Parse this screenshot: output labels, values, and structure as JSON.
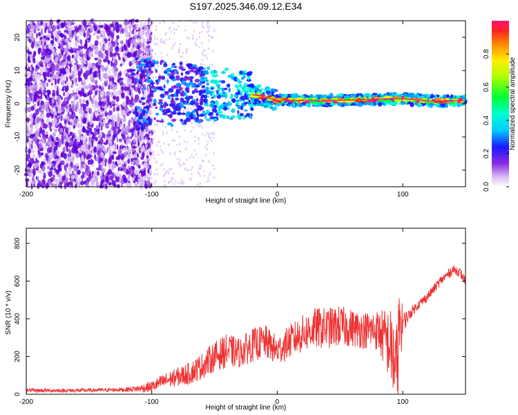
{
  "title": "S197.2025.346.09.12.E34",
  "chart_data": [
    {
      "type": "heatmap",
      "title": "S197.2025.346.09.12.E34",
      "xlabel": "Height of straight line (km)",
      "ylabel": "Frequency (Hz)",
      "xlim": [
        -200,
        150
      ],
      "ylim": [
        -25,
        25
      ],
      "x_ticks": [
        -200,
        -100,
        0,
        100
      ],
      "x_tick_labels": [
        "-200",
        "-100",
        "0",
        "100"
      ],
      "y_ticks": [
        20,
        10,
        0,
        -10,
        -20
      ],
      "y_tick_labels": [
        "20",
        "10",
        "0",
        "-10",
        "-20"
      ],
      "colorbar": {
        "label": "Normalized spectral amplitude",
        "range": [
          0,
          1
        ],
        "ticks": [
          0.0,
          0.2,
          0.4,
          0.6,
          0.8
        ],
        "tick_labels": [
          "0.0",
          "0.2",
          "0.4",
          "0.6",
          "0.8"
        ]
      },
      "description_points": {
        "ridge_frequency_hz": [
          [
            -30,
            3
          ],
          [
            -15,
            2.5
          ],
          [
            0,
            1
          ],
          [
            50,
            1
          ],
          [
            90,
            1.5
          ],
          [
            100,
            1.5
          ],
          [
            125,
            0.8
          ],
          [
            150,
            1
          ]
        ],
        "noise_region_km": [
          -200,
          -110
        ]
      }
    },
    {
      "type": "line",
      "xlabel": "Height of straight line (km)",
      "ylabel": "SNR (10 * v/v)",
      "xlim": [
        -200,
        150
      ],
      "ylim": [
        0,
        880
      ],
      "x_ticks": [
        -200,
        -100,
        0,
        100
      ],
      "x_tick_labels": [
        "-200",
        "-100",
        "0",
        "100"
      ],
      "y_ticks": [
        0,
        200,
        400,
        600,
        800
      ],
      "y_tick_labels": [
        "0",
        "200",
        "400",
        "600",
        "800"
      ],
      "color": "#ee3333",
      "series": [
        {
          "name": "SNR",
          "x": [
            -200,
            -180,
            -160,
            -140,
            -120,
            -110,
            -100,
            -90,
            -80,
            -70,
            -60,
            -50,
            -40,
            -30,
            -20,
            -10,
            0,
            10,
            20,
            30,
            40,
            50,
            60,
            70,
            80,
            90,
            95,
            98,
            100,
            105,
            110,
            120,
            130,
            140,
            145,
            150
          ],
          "values": [
            20,
            20,
            20,
            22,
            25,
            30,
            40,
            70,
            90,
            110,
            150,
            200,
            230,
            220,
            260,
            280,
            230,
            280,
            320,
            350,
            350,
            360,
            350,
            340,
            340,
            260,
            120,
            380,
            380,
            420,
            460,
            520,
            600,
            660,
            650,
            600
          ],
          "spread": [
            10,
            10,
            10,
            10,
            12,
            20,
            30,
            40,
            50,
            60,
            70,
            80,
            90,
            80,
            90,
            90,
            80,
            90,
            100,
            110,
            110,
            110,
            100,
            100,
            110,
            200,
            250,
            250,
            60,
            30,
            25,
            25,
            25,
            25,
            25,
            25
          ]
        }
      ]
    }
  ]
}
